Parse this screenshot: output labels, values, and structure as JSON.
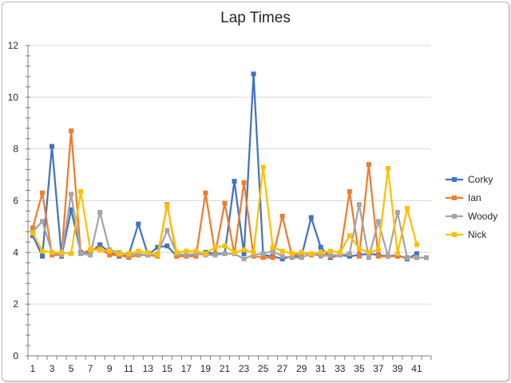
{
  "chart_data": {
    "type": "line",
    "title": "Lap Times",
    "xlabel": "",
    "ylabel": "",
    "ylim": [
      0,
      12
    ],
    "yticks": [
      0,
      2,
      4,
      6,
      8,
      10,
      12
    ],
    "x": [
      1,
      2,
      3,
      4,
      5,
      6,
      7,
      8,
      9,
      10,
      11,
      12,
      13,
      14,
      15,
      16,
      17,
      18,
      19,
      20,
      21,
      22,
      23,
      24,
      25,
      26,
      27,
      28,
      29,
      30,
      31,
      32,
      33,
      34,
      35,
      36,
      37,
      38,
      39,
      40,
      41,
      42
    ],
    "xtick_labels": [
      "1",
      "3",
      "5",
      "7",
      "9",
      "11",
      "13",
      "15",
      "17",
      "19",
      "21",
      "23",
      "25",
      "27",
      "29",
      "31",
      "33",
      "35",
      "37",
      "39",
      "41"
    ],
    "grid": true,
    "legend": "right",
    "series": [
      {
        "name": "Corky",
        "color": "#4472c4",
        "values": [
          4.65,
          3.85,
          8.1,
          3.85,
          5.65,
          4.0,
          4.0,
          4.3,
          4.0,
          3.85,
          3.9,
          5.1,
          3.9,
          4.2,
          4.25,
          3.85,
          3.9,
          3.9,
          4.0,
          3.95,
          3.95,
          6.75,
          3.95,
          10.9,
          3.9,
          3.85,
          3.75,
          3.85,
          3.85,
          5.35,
          4.2,
          3.8,
          3.9,
          3.85,
          3.9,
          3.95,
          3.9,
          3.85,
          3.9,
          3.75,
          3.95,
          null
        ]
      },
      {
        "name": "Ian",
        "color": "#ed7d31",
        "values": [
          4.95,
          6.3,
          3.9,
          3.9,
          8.7,
          3.95,
          4.1,
          4.15,
          3.9,
          3.9,
          3.8,
          3.9,
          3.9,
          3.85,
          5.85,
          3.85,
          3.85,
          3.85,
          6.3,
          3.95,
          5.9,
          3.95,
          6.7,
          3.85,
          3.8,
          3.8,
          5.4,
          3.85,
          4.0,
          3.9,
          3.95,
          3.85,
          3.9,
          6.35,
          3.85,
          7.4,
          3.85,
          3.85,
          3.85,
          3.8,
          3.8,
          null
        ]
      },
      {
        "name": "Woody",
        "color": "#a5a5a5",
        "values": [
          4.8,
          5.2,
          4.0,
          3.9,
          6.25,
          3.95,
          3.9,
          5.55,
          4.1,
          4.0,
          3.9,
          3.95,
          3.9,
          3.95,
          4.85,
          3.95,
          3.9,
          3.95,
          3.9,
          3.9,
          3.95,
          3.95,
          3.75,
          3.9,
          3.95,
          4.05,
          3.85,
          3.8,
          3.8,
          3.95,
          3.85,
          3.9,
          3.9,
          3.95,
          5.85,
          3.8,
          5.2,
          3.85,
          5.55,
          3.8,
          3.8,
          3.8
        ]
      },
      {
        "name": "Nick",
        "color": "#ffc000",
        "values": [
          4.75,
          4.05,
          4.0,
          4.0,
          3.95,
          6.35,
          4.1,
          4.1,
          4.05,
          3.95,
          3.95,
          4.05,
          4.0,
          3.9,
          5.8,
          4.0,
          4.05,
          4.05,
          3.95,
          4.2,
          4.25,
          4.0,
          4.1,
          4.0,
          7.3,
          4.2,
          4.05,
          3.95,
          4.0,
          3.95,
          4.0,
          4.05,
          4.0,
          4.65,
          4.15,
          4.0,
          4.1,
          7.25,
          3.95,
          5.7,
          4.3,
          null
        ]
      }
    ]
  }
}
